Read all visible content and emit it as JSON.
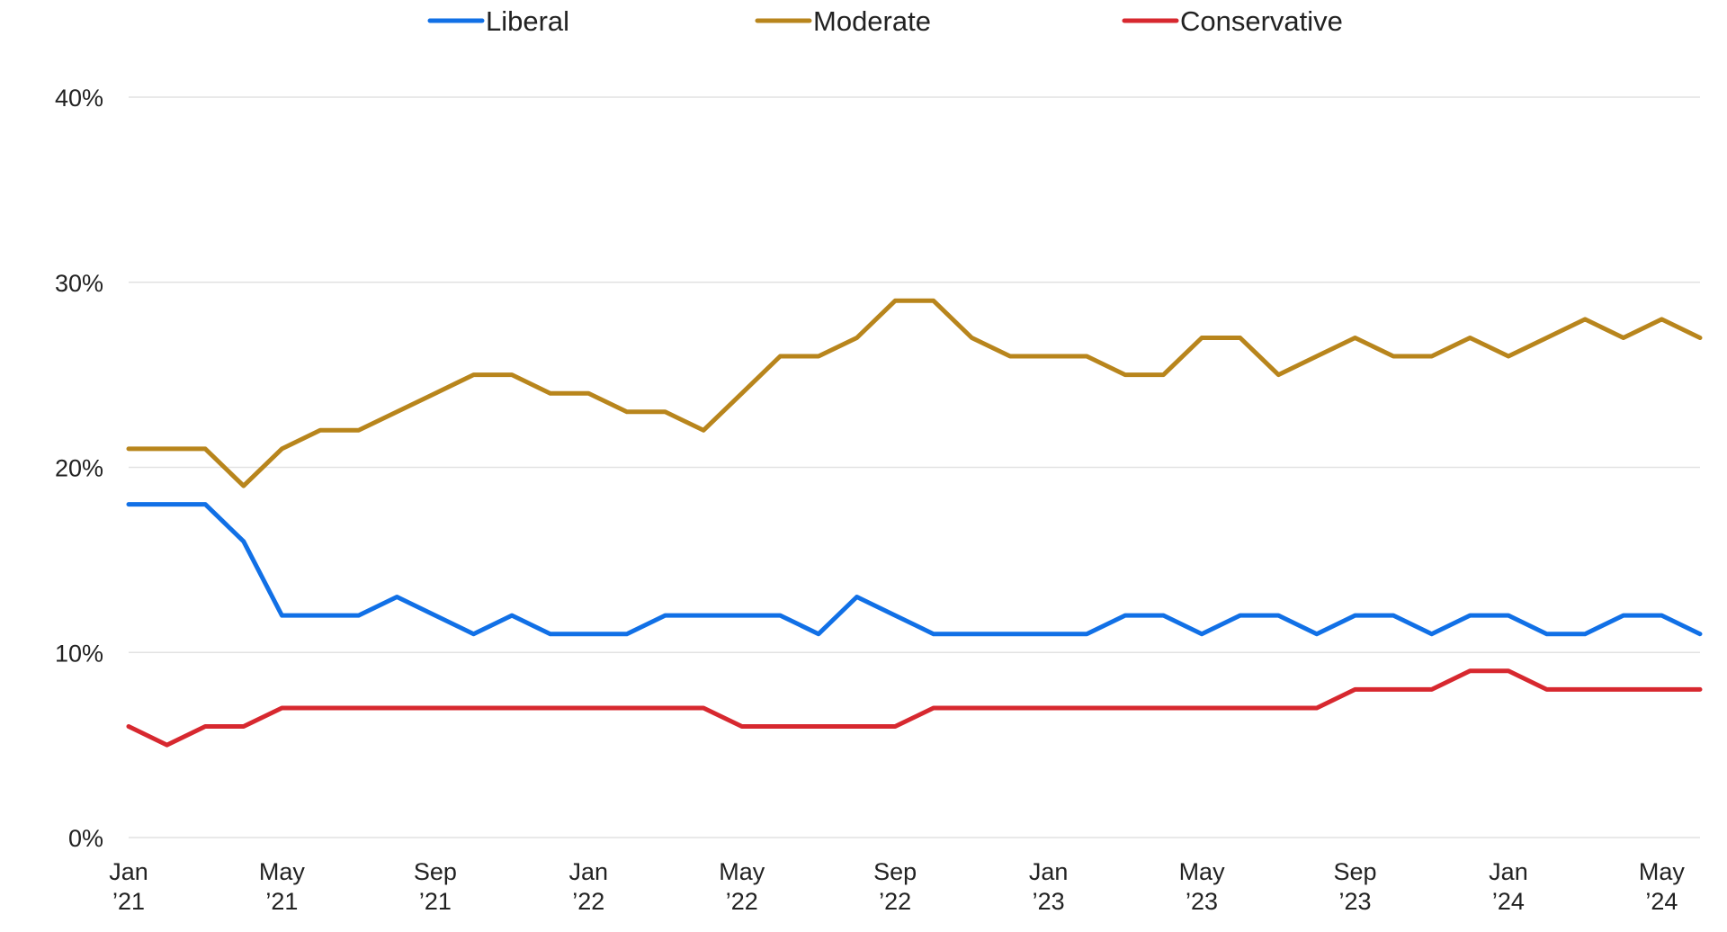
{
  "chart_data": {
    "type": "line",
    "title": "",
    "xlabel": "",
    "ylabel": "",
    "ylim": [
      0,
      40
    ],
    "y_ticks": [
      {
        "value": 0,
        "label": "0%"
      },
      {
        "value": 10,
        "label": "10%"
      },
      {
        "value": 20,
        "label": "20%"
      },
      {
        "value": 30,
        "label": "30%"
      },
      {
        "value": 40,
        "label": "40%"
      }
    ],
    "x": [
      "2021-01",
      "2021-02",
      "2021-03",
      "2021-04",
      "2021-05",
      "2021-06",
      "2021-07",
      "2021-08",
      "2021-09",
      "2021-10",
      "2021-11",
      "2021-12",
      "2022-01",
      "2022-02",
      "2022-03",
      "2022-04",
      "2022-05",
      "2022-06",
      "2022-07",
      "2022-08",
      "2022-09",
      "2022-10",
      "2022-11",
      "2022-12",
      "2023-01",
      "2023-02",
      "2023-03",
      "2023-04",
      "2023-05",
      "2023-06",
      "2023-07",
      "2023-08",
      "2023-09",
      "2023-10",
      "2023-11",
      "2023-12",
      "2024-01",
      "2024-02",
      "2024-03",
      "2024-04",
      "2024-05",
      "2024-06"
    ],
    "x_ticks": [
      {
        "month": "Jan",
        "year": "’21"
      },
      {
        "month": "May",
        "year": "’21"
      },
      {
        "month": "Sep",
        "year": "’21"
      },
      {
        "month": "Jan",
        "year": "’22"
      },
      {
        "month": "May",
        "year": "’22"
      },
      {
        "month": "Sep",
        "year": "’22"
      },
      {
        "month": "Jan",
        "year": "’23"
      },
      {
        "month": "May",
        "year": "’23"
      },
      {
        "month": "Sep",
        "year": "’23"
      },
      {
        "month": "Jan",
        "year": "’24"
      },
      {
        "month": "May",
        "year": "’24"
      }
    ],
    "grid": true,
    "legend_position": "top-center",
    "series": [
      {
        "name": "Liberal",
        "color": "#1170e6",
        "values": [
          18,
          18,
          18,
          16,
          12,
          12,
          12,
          13,
          12,
          11,
          12,
          11,
          11,
          11,
          12,
          12,
          12,
          12,
          11,
          13,
          12,
          11,
          11,
          11,
          11,
          11,
          12,
          12,
          11,
          12,
          12,
          11,
          12,
          12,
          11,
          12,
          12,
          11,
          11,
          12,
          12,
          11
        ]
      },
      {
        "name": "Moderate",
        "color": "#b8851c",
        "values": [
          21,
          21,
          21,
          19,
          21,
          22,
          22,
          23,
          24,
          25,
          25,
          24,
          24,
          23,
          23,
          22,
          24,
          26,
          26,
          27,
          29,
          29,
          27,
          26,
          26,
          26,
          25,
          25,
          27,
          27,
          25,
          26,
          27,
          26,
          26,
          27,
          26,
          27,
          28,
          27,
          28,
          27
        ]
      },
      {
        "name": "Conservative",
        "color": "#d7282f",
        "values": [
          6,
          5,
          6,
          6,
          7,
          7,
          7,
          7,
          7,
          7,
          7,
          7,
          7,
          7,
          7,
          7,
          6,
          6,
          6,
          6,
          6,
          7,
          7,
          7,
          7,
          7,
          7,
          7,
          7,
          7,
          7,
          7,
          8,
          8,
          8,
          9,
          9,
          8,
          8,
          8,
          8,
          8
        ]
      }
    ]
  }
}
